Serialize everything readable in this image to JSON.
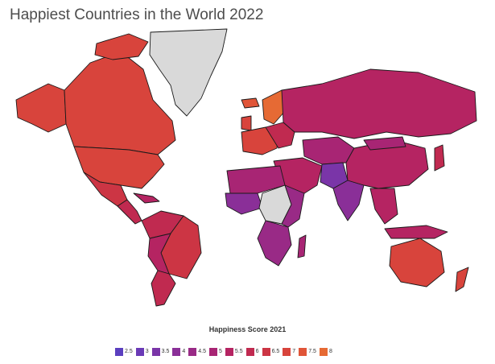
{
  "title": "Happiest Countries in the World 2022",
  "legend": {
    "title": "Happiness Score 2021",
    "items": [
      {
        "label": "2.5",
        "color": "#5b3fbf"
      },
      {
        "label": "3",
        "color": "#6a3ab6"
      },
      {
        "label": "3.5",
        "color": "#7a35a8"
      },
      {
        "label": "4",
        "color": "#8a2f98"
      },
      {
        "label": "4.5",
        "color": "#992a86"
      },
      {
        "label": "5",
        "color": "#a82574"
      },
      {
        "label": "5.5",
        "color": "#b52462"
      },
      {
        "label": "6",
        "color": "#c02a50"
      },
      {
        "label": "6.5",
        "color": "#cc3544"
      },
      {
        "label": "7",
        "color": "#d8443c"
      },
      {
        "label": "7.5",
        "color": "#e05538"
      },
      {
        "label": "8",
        "color": "#e66a34"
      }
    ]
  },
  "colors": {
    "no_data": "#d9d9d9"
  }
}
